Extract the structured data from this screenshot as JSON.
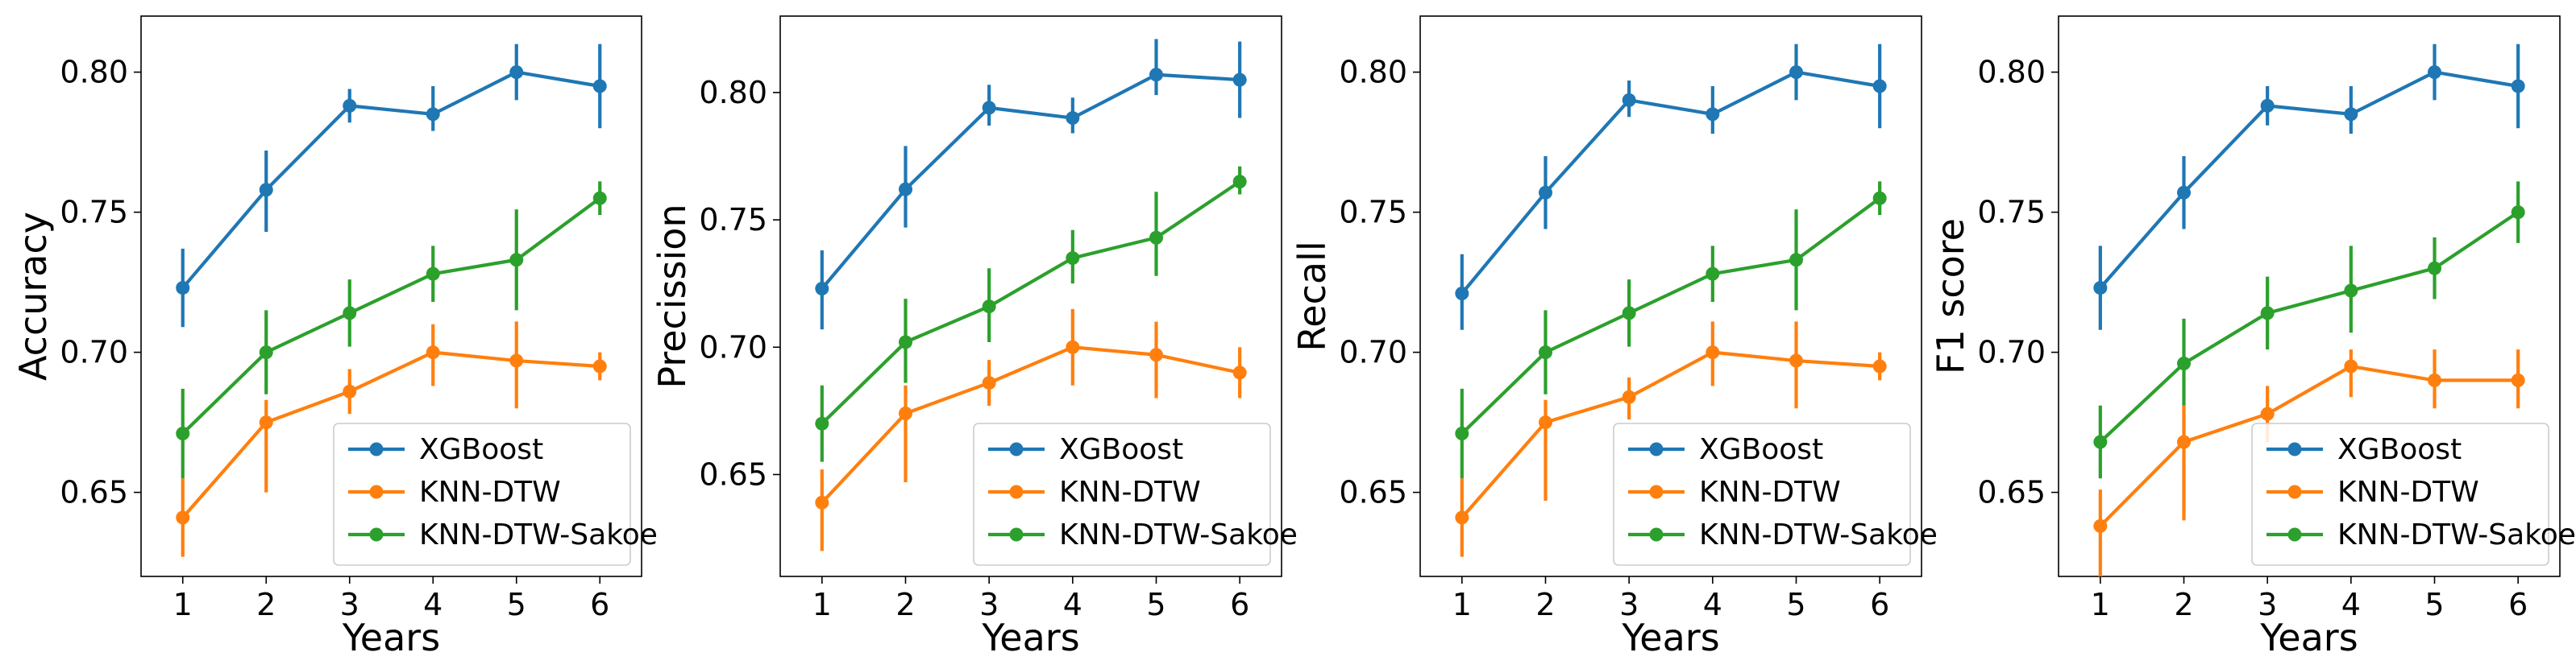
{
  "colors": {
    "XGBoost": "#1f77b4",
    "KNN-DTW": "#ff7f0e",
    "KNN-DTW-Sakoe": "#2ca02c"
  },
  "chart_data": [
    {
      "type": "line",
      "xlabel": "Years",
      "ylabel": "Accuracy",
      "x": [
        1,
        2,
        3,
        4,
        5,
        6
      ],
      "xticks": [
        "1",
        "2",
        "3",
        "4",
        "5",
        "6"
      ],
      "ylim": [
        0.62,
        0.82
      ],
      "yticks": [
        0.65,
        0.7,
        0.75,
        0.8
      ],
      "ytick_labels": [
        "0.65",
        "0.70",
        "0.75",
        "0.80"
      ],
      "legend_position": "lower right",
      "series": [
        {
          "name": "XGBoost",
          "values": [
            0.723,
            0.758,
            0.788,
            0.785,
            0.8,
            0.795
          ],
          "err_low": [
            0.709,
            0.743,
            0.782,
            0.779,
            0.79,
            0.78
          ],
          "err_high": [
            0.737,
            0.772,
            0.794,
            0.795,
            0.81,
            0.81
          ]
        },
        {
          "name": "KNN-DTW",
          "values": [
            0.641,
            0.675,
            0.686,
            0.7,
            0.697,
            0.695
          ],
          "err_low": [
            0.627,
            0.65,
            0.678,
            0.688,
            0.68,
            0.69
          ],
          "err_high": [
            0.655,
            0.683,
            0.694,
            0.71,
            0.711,
            0.7
          ]
        },
        {
          "name": "KNN-DTW-Sakoe",
          "values": [
            0.671,
            0.7,
            0.714,
            0.728,
            0.733,
            0.755
          ],
          "err_low": [
            0.655,
            0.685,
            0.702,
            0.718,
            0.715,
            0.749
          ],
          "err_high": [
            0.687,
            0.715,
            0.726,
            0.738,
            0.751,
            0.761
          ]
        }
      ]
    },
    {
      "type": "line",
      "xlabel": "Years",
      "ylabel": "Precission",
      "x": [
        1,
        2,
        3,
        4,
        5,
        6
      ],
      "xticks": [
        "1",
        "2",
        "3",
        "4",
        "5",
        "6"
      ],
      "ylim": [
        0.61,
        0.83
      ],
      "yticks": [
        0.65,
        0.7,
        0.75,
        0.8
      ],
      "ytick_labels": [
        "0.65",
        "0.70",
        "0.75",
        "0.80"
      ],
      "legend_position": "lower right",
      "series": [
        {
          "name": "XGBoost",
          "values": [
            0.723,
            0.762,
            0.794,
            0.79,
            0.807,
            0.805
          ],
          "err_low": [
            0.707,
            0.747,
            0.787,
            0.784,
            0.799,
            0.79
          ],
          "err_high": [
            0.738,
            0.779,
            0.803,
            0.798,
            0.821,
            0.82
          ]
        },
        {
          "name": "KNN-DTW",
          "values": [
            0.639,
            0.674,
            0.686,
            0.7,
            0.697,
            0.69
          ],
          "err_low": [
            0.62,
            0.647,
            0.677,
            0.685,
            0.68,
            0.68
          ],
          "err_high": [
            0.652,
            0.685,
            0.695,
            0.715,
            0.71,
            0.7
          ]
        },
        {
          "name": "KNN-DTW-Sakoe",
          "values": [
            0.67,
            0.702,
            0.716,
            0.735,
            0.743,
            0.765
          ],
          "err_low": [
            0.655,
            0.686,
            0.702,
            0.725,
            0.728,
            0.76
          ],
          "err_high": [
            0.685,
            0.719,
            0.731,
            0.746,
            0.761,
            0.771
          ]
        }
      ]
    },
    {
      "type": "line",
      "xlabel": "Years",
      "ylabel": "Recall",
      "x": [
        1,
        2,
        3,
        4,
        5,
        6
      ],
      "xticks": [
        "1",
        "2",
        "3",
        "4",
        "5",
        "6"
      ],
      "ylim": [
        0.62,
        0.82
      ],
      "yticks": [
        0.65,
        0.7,
        0.75,
        0.8
      ],
      "ytick_labels": [
        "0.65",
        "0.70",
        "0.75",
        "0.80"
      ],
      "legend_position": "lower right",
      "series": [
        {
          "name": "XGBoost",
          "values": [
            0.721,
            0.757,
            0.79,
            0.785,
            0.8,
            0.795
          ],
          "err_low": [
            0.708,
            0.744,
            0.784,
            0.778,
            0.79,
            0.78
          ],
          "err_high": [
            0.735,
            0.77,
            0.797,
            0.795,
            0.81,
            0.81
          ]
        },
        {
          "name": "KNN-DTW",
          "values": [
            0.641,
            0.675,
            0.684,
            0.7,
            0.697,
            0.695
          ],
          "err_low": [
            0.627,
            0.647,
            0.676,
            0.688,
            0.68,
            0.69
          ],
          "err_high": [
            0.655,
            0.683,
            0.691,
            0.711,
            0.711,
            0.7
          ]
        },
        {
          "name": "KNN-DTW-Sakoe",
          "values": [
            0.671,
            0.7,
            0.714,
            0.728,
            0.733,
            0.755
          ],
          "err_low": [
            0.655,
            0.685,
            0.702,
            0.718,
            0.715,
            0.749
          ],
          "err_high": [
            0.687,
            0.715,
            0.726,
            0.738,
            0.751,
            0.761
          ]
        }
      ]
    },
    {
      "type": "line",
      "xlabel": "Years",
      "ylabel": "F1 score",
      "x": [
        1,
        2,
        3,
        4,
        5,
        6
      ],
      "xticks": [
        "1",
        "2",
        "3",
        "4",
        "5",
        "6"
      ],
      "ylim": [
        0.62,
        0.82
      ],
      "yticks": [
        0.65,
        0.7,
        0.75,
        0.8
      ],
      "ytick_labels": [
        "0.65",
        "0.70",
        "0.75",
        "0.80"
      ],
      "legend_position": "lower right",
      "series": [
        {
          "name": "XGBoost",
          "values": [
            0.723,
            0.757,
            0.788,
            0.785,
            0.8,
            0.795
          ],
          "err_low": [
            0.708,
            0.744,
            0.781,
            0.778,
            0.79,
            0.78
          ],
          "err_high": [
            0.738,
            0.77,
            0.795,
            0.795,
            0.81,
            0.81
          ]
        },
        {
          "name": "KNN-DTW",
          "values": [
            0.638,
            0.668,
            0.678,
            0.695,
            0.69,
            0.69
          ],
          "err_low": [
            0.62,
            0.64,
            0.668,
            0.684,
            0.68,
            0.68
          ],
          "err_high": [
            0.651,
            0.681,
            0.688,
            0.701,
            0.701,
            0.701
          ]
        },
        {
          "name": "KNN-DTW-Sakoe",
          "values": [
            0.668,
            0.696,
            0.714,
            0.722,
            0.73,
            0.75
          ],
          "err_low": [
            0.655,
            0.681,
            0.701,
            0.707,
            0.719,
            0.739
          ],
          "err_high": [
            0.681,
            0.712,
            0.727,
            0.738,
            0.741,
            0.761
          ]
        }
      ]
    }
  ]
}
